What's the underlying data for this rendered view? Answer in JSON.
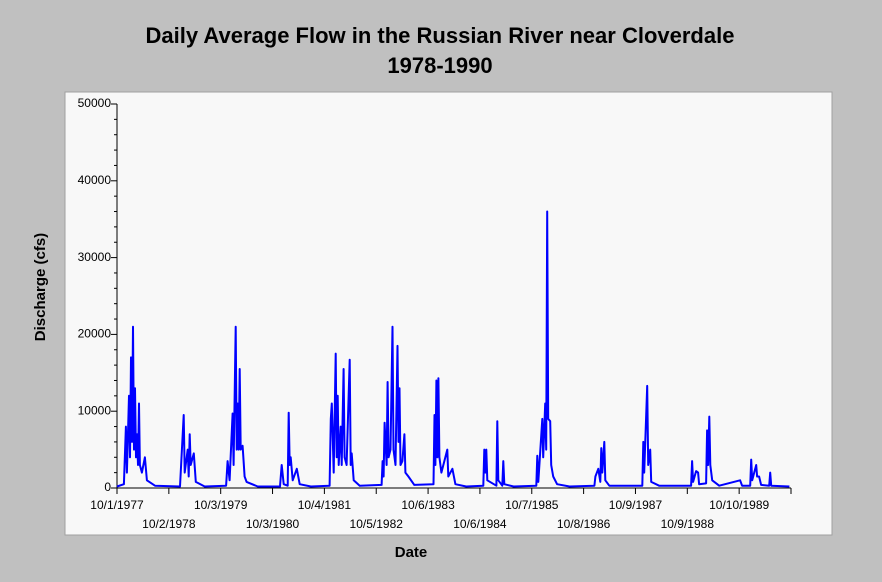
{
  "chart_data": {
    "type": "line",
    "title": "Daily Average Flow in the Russian River near Cloverdale",
    "subtitle": "1978-1990",
    "xlabel": "Date",
    "ylabel": "Discharge (cfs)",
    "xlim": [
      "10/1/1977",
      "10/11/1990"
    ],
    "xticks": [
      "10/1/1977",
      "10/2/1978",
      "10/3/1979",
      "10/3/1980",
      "10/4/1981",
      "10/5/1982",
      "10/6/1983",
      "10/6/1984",
      "10/7/1985",
      "10/8/1986",
      "10/9/1987",
      "10/9/1988",
      "10/10/1989"
    ],
    "ylim": [
      0,
      50000
    ],
    "yticks": [
      0,
      10000,
      20000,
      30000,
      40000,
      50000
    ],
    "series": [
      {
        "color": "#0000ff",
        "x": [
          "10/1/1977",
          "11/19/1977",
          "12/3/1977",
          "12/10/1977",
          "12/25/1977",
          "1/1/1978",
          "1/8/1978",
          "1/15/1978",
          "1/22/1978",
          "1/29/1978",
          "2/5/1978",
          "2/12/1978",
          "2/19/1978",
          "2/26/1978",
          "3/5/1978",
          "3/12/1978",
          "3/26/1978",
          "4/16/1978",
          "4/30/1978",
          "6/26/1978",
          "12/20/1978",
          "1/15/1979",
          "1/22/1979",
          "2/12/1979",
          "2/19/1979",
          "2/26/1979",
          "3/5/1979",
          "3/27/1979",
          "4/10/1979",
          "6/12/1979",
          "11/10/1979",
          "11/21/1979",
          "12/5/1979",
          "12/26/1979",
          "1/2/1980",
          "1/17/1980",
          "1/24/1980",
          "1/31/1980",
          "2/7/1980",
          "2/14/1980",
          "2/21/1980",
          "3/6/1980",
          "3/20/1980",
          "4/3/1980",
          "6/20/1980",
          "11/25/1980",
          "12/7/1980",
          "12/21/1980",
          "1/18/1981",
          "1/25/1981",
          "2/1/1981",
          "2/8/1981",
          "2/22/1981",
          "3/23/1981",
          "4/13/1981",
          "7/1/1981",
          "11/10/1981",
          "11/18/1981",
          "11/25/1981",
          "12/9/1981",
          "12/23/1981",
          "12/30/1981",
          "1/6/1982",
          "1/13/1982",
          "1/27/1982",
          "2/3/1982",
          "2/17/1982",
          "2/24/1982",
          "3/10/1982",
          "4/1/1982",
          "4/8/1982",
          "4/15/1982",
          "4/29/1982",
          "6/10/1982",
          "11/12/1982",
          "11/19/1982",
          "11/26/1982",
          "12/3/1982",
          "12/17/1982",
          "12/24/1982",
          "12/31/1982",
          "1/14/1983",
          "1/28/1983",
          "2/4/1983",
          "2/18/1983",
          "3/4/1983",
          "3/11/1983",
          "3/18/1983",
          "3/25/1983",
          "4/8/1983",
          "4/22/1983",
          "4/29/1983",
          "5/20/1983",
          "7/1/1983",
          "11/13/1983",
          "11/20/1983",
          "11/27/1983",
          "12/4/1983",
          "12/11/1983",
          "12/18/1983",
          "12/25/1983",
          "1/8/1984",
          "2/19/1984",
          "2/26/1984",
          "3/26/1984",
          "4/16/1984",
          "7/1/1984",
          "10/30/1984",
          "11/6/1984",
          "11/13/1984",
          "11/20/1984",
          "11/27/1984",
          "1/30/1985",
          "2/6/1985",
          "2/13/1985",
          "3/13/1985",
          "3/20/1985",
          "3/27/1985",
          "6/1/1985",
          "11/8/1985",
          "11/15/1985",
          "11/22/1985",
          "12/20/1985",
          "12/27/1985",
          "1/10/1986",
          "1/17/1986",
          "1/24/1986",
          "1/31/1986",
          "2/14/1986",
          "2/21/1986",
          "3/7/1986",
          "4/4/1986",
          "7/1/1986",
          "12/23/1986",
          "12/30/1986",
          "1/20/1987",
          "2/3/1987",
          "2/10/1987",
          "2/17/1987",
          "3/3/1987",
          "3/10/1987",
          "4/7/1987",
          "11/26/1987",
          "12/3/1987",
          "12/10/1987",
          "12/31/1987",
          "1/7/1988",
          "1/21/1988",
          "1/28/1988",
          "3/24/1988",
          "11/5/1988",
          "11/12/1988",
          "11/19/1988",
          "12/10/1988",
          "12/24/1988",
          "12/31/1988",
          "2/19/1989",
          "2/26/1989",
          "3/5/1989",
          "3/13/1989",
          "3/20/1989",
          "4/3/1989",
          "5/22/1989",
          "10/17/1989",
          "10/31/1989",
          "12/27/1989",
          "1/3/1990",
          "1/10/1990",
          "2/7/1990",
          "2/14/1990",
          "2/28/1990",
          "3/14/1990",
          "5/10/1990",
          "5/17/1990",
          "5/24/1990",
          "9/30/1990"
        ],
        "values": [
          200,
          500,
          8000,
          2000,
          12000,
          4000,
          17000,
          6000,
          21000,
          5000,
          13000,
          4000,
          7000,
          3000,
          11000,
          3000,
          2000,
          4000,
          1000,
          300,
          200,
          9500,
          2000,
          5000,
          1500,
          7000,
          3000,
          4500,
          800,
          200,
          300,
          3500,
          1000,
          9700,
          3000,
          21000,
          5000,
          11000,
          5000,
          15500,
          5000,
          5500,
          1500,
          800,
          200,
          200,
          3000,
          500,
          300,
          9800,
          3000,
          4000,
          1000,
          2500,
          500,
          200,
          300,
          9000,
          11000,
          2000,
          17500,
          4000,
          12000,
          3000,
          8000,
          3000,
          15500,
          4000,
          3000,
          16700,
          3000,
          4500,
          1000,
          300,
          400,
          3500,
          1500,
          8500,
          3000,
          13800,
          4000,
          5000,
          21000,
          5000,
          3000,
          18500,
          6000,
          13000,
          3000,
          3500,
          7000,
          2000,
          1500,
          400,
          500,
          9500,
          3000,
          14000,
          4000,
          14300,
          4000,
          2000,
          5000,
          1500,
          2500,
          500,
          200,
          300,
          5000,
          2000,
          5000,
          1000,
          300,
          8700,
          1000,
          300,
          3500,
          500,
          200,
          300,
          4200,
          800,
          9000,
          4000,
          11000,
          5000,
          36000,
          9000,
          8700,
          3000,
          1500,
          500,
          200,
          300,
          1500,
          2500,
          800,
          5200,
          2000,
          6000,
          1000,
          300,
          300,
          6000,
          2000,
          13300,
          3000,
          5000,
          800,
          300,
          300,
          3500,
          800,
          2200,
          2000,
          500,
          600,
          7500,
          3000,
          9300,
          3000,
          1000,
          300,
          1000,
          300,
          300,
          3700,
          1000,
          3000,
          1500,
          1500,
          400,
          300,
          2000,
          300,
          200
        ]
      }
    ]
  }
}
